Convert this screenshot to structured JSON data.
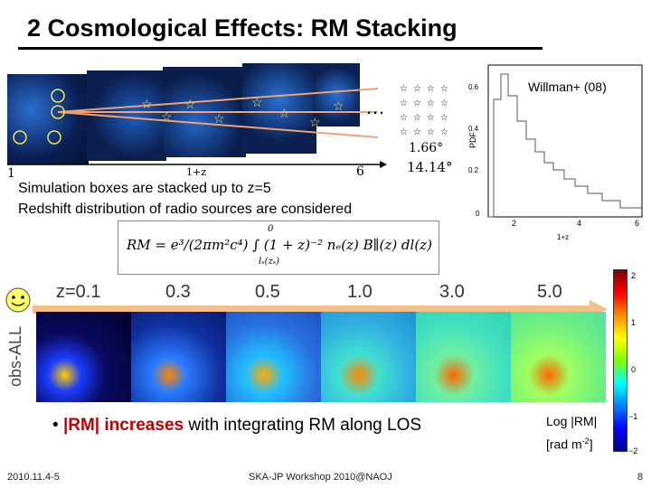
{
  "slide": {
    "title": "2 Cosmological Effects: RM Stacking",
    "footer_date": "2010.11.4-5",
    "footer_event": "SKA-JP Workshop 2010@NAOJ",
    "page_number": "8"
  },
  "top_figure": {
    "axis_start": "1",
    "axis_mid": "1+z",
    "axis_end": "6",
    "ellipsis": "…",
    "grid_label_small": "1.66°",
    "grid_label_large": "14.14°"
  },
  "pdf_plot": {
    "attribution": "Willman+ (08)",
    "ylabel": "PDF",
    "xlabel": "1+z",
    "xticks": [
      "2",
      "4",
      "6"
    ],
    "yticks": [
      "0.6",
      "0.4",
      "0.2",
      "0"
    ]
  },
  "captions": {
    "line1": "Simulation boxes are stacked up to z=5",
    "line2": "Redshift distribution of radio sources are considered"
  },
  "equation": {
    "text": "RM = e³/(2πm²c⁴) ∫ (1 + z)⁻² nₑ(z) B∥(z) dl(z)",
    "upper_limit": "0",
    "lower_limit": "lₛ(zₛ)"
  },
  "redshift_labels": [
    "z=0.1",
    "0.3",
    "0.5",
    "1.0",
    "3.0",
    "5.0"
  ],
  "side_label": "obs-ALL",
  "bullet": {
    "marker": "•",
    "highlight": "|RM| increases",
    "rest": " with integrating RM along LOS"
  },
  "colorbar": {
    "ticks": [
      "2",
      "1",
      "0",
      "−1",
      "−2"
    ],
    "label_line1": "Log |RM|",
    "label_line2": "[rad m",
    "label_sup": "-2",
    "label_close": "]"
  },
  "colors": {
    "highlight": "#c00000",
    "arrow": "#f4c089",
    "sim_blue": "#0b1a40"
  }
}
